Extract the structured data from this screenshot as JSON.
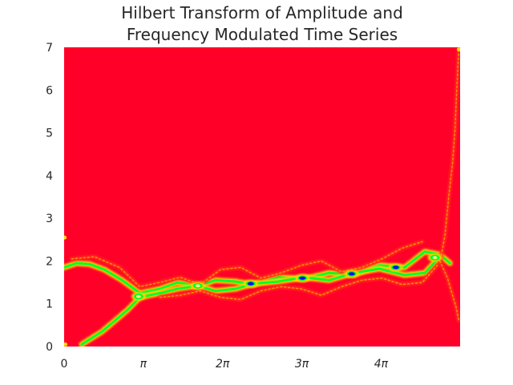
{
  "chart_data": {
    "type": "heatmap",
    "title_lines": [
      "Hilbert Transform of Amplitude and",
      "Frequency Modulated Time Series"
    ],
    "xlabel": "",
    "ylabel": "",
    "xlim": [
      0,
      15.7
    ],
    "ylim": [
      0,
      7
    ],
    "x_ticks": [
      {
        "value": 0,
        "label": "0"
      },
      {
        "value": 3.1416,
        "label": "π"
      },
      {
        "value": 6.2832,
        "label": "2π"
      },
      {
        "value": 9.4248,
        "label": "3π"
      },
      {
        "value": 12.5664,
        "label": "4π"
      }
    ],
    "y_ticks": [
      {
        "value": 0,
        "label": "0"
      },
      {
        "value": 1,
        "label": "1"
      },
      {
        "value": 2,
        "label": "2"
      },
      {
        "value": 3,
        "label": "3"
      },
      {
        "value": 4,
        "label": "4"
      },
      {
        "value": 5,
        "label": "5"
      },
      {
        "value": 6,
        "label": "6"
      },
      {
        "value": 7,
        "label": "7"
      }
    ],
    "grid": false,
    "colormap": {
      "background": "#ff0029",
      "low": "#ff2a1a",
      "mid": "#ffd700",
      "high": "#00ff2a",
      "peak": "#0000ff"
    },
    "ridges": [
      {
        "name": "ridge-upper-band",
        "strength": "high",
        "x": [
          0,
          0.5,
          1.0,
          1.6,
          2.3,
          3.0,
          3.8,
          4.5,
          5.3,
          6.0,
          6.8,
          7.5,
          8.5,
          9.5,
          10.5,
          11.5,
          12.5,
          13.5,
          14.3,
          14.9,
          15.3
        ],
        "y": [
          1.85,
          1.95,
          1.93,
          1.8,
          1.55,
          1.25,
          1.35,
          1.5,
          1.42,
          1.55,
          1.52,
          1.45,
          1.62,
          1.58,
          1.72,
          1.68,
          1.9,
          1.85,
          2.22,
          2.15,
          1.95
        ]
      },
      {
        "name": "ridge-lower-band",
        "strength": "high",
        "x": [
          0.7,
          1.5,
          2.5,
          3.0,
          3.8,
          4.5,
          5.3,
          6.0,
          6.8,
          7.5,
          8.5,
          9.5,
          10.5,
          11.5,
          12.5,
          13.5,
          14.3,
          14.9
        ],
        "y": [
          0.05,
          0.35,
          0.85,
          1.15,
          1.25,
          1.35,
          1.42,
          1.3,
          1.35,
          1.47,
          1.52,
          1.62,
          1.55,
          1.72,
          1.82,
          1.67,
          1.72,
          2.1
        ]
      },
      {
        "name": "ridge-faint-upper",
        "strength": "low",
        "x": [
          0.3,
          1.2,
          2.2,
          3.0,
          3.8,
          4.6,
          5.4,
          6.2,
          7.0,
          7.8,
          8.6,
          9.4,
          10.2,
          11.0,
          11.8,
          12.6,
          13.4,
          14.2
        ],
        "y": [
          2.05,
          2.1,
          1.85,
          1.4,
          1.5,
          1.62,
          1.45,
          1.8,
          1.85,
          1.6,
          1.72,
          1.9,
          2.0,
          1.75,
          1.85,
          2.05,
          2.3,
          2.45
        ]
      },
      {
        "name": "ridge-faint-lower",
        "strength": "low",
        "x": [
          3.8,
          4.6,
          5.4,
          6.2,
          7.0,
          7.8,
          8.6,
          9.4,
          10.2,
          11.0,
          11.8,
          12.6,
          13.4,
          14.2,
          14.8
        ],
        "y": [
          1.15,
          1.2,
          1.3,
          1.15,
          1.1,
          1.3,
          1.4,
          1.35,
          1.2,
          1.4,
          1.55,
          1.6,
          1.45,
          1.5,
          1.9
        ]
      },
      {
        "name": "ridge-end-spike",
        "strength": "low",
        "x": [
          14.9,
          15.1,
          15.25,
          15.4,
          15.5,
          15.55,
          15.6,
          15.65
        ],
        "y": [
          1.95,
          2.6,
          3.5,
          4.3,
          5.1,
          5.8,
          6.4,
          6.95
        ]
      },
      {
        "name": "ridge-end-drop",
        "strength": "low",
        "x": [
          14.9,
          15.2,
          15.4,
          15.55,
          15.65
        ],
        "y": [
          2.0,
          1.6,
          1.2,
          0.9,
          0.6
        ]
      }
    ],
    "peaks": [
      {
        "x": 2.95,
        "y": 1.17,
        "strength": "mid"
      },
      {
        "x": 5.3,
        "y": 1.42,
        "strength": "mid"
      },
      {
        "x": 7.4,
        "y": 1.47,
        "strength": "peak"
      },
      {
        "x": 9.45,
        "y": 1.6,
        "strength": "peak"
      },
      {
        "x": 11.4,
        "y": 1.7,
        "strength": "peak"
      },
      {
        "x": 13.15,
        "y": 1.85,
        "strength": "peak"
      },
      {
        "x": 14.7,
        "y": 2.08,
        "strength": "high"
      }
    ],
    "edge_marks": [
      {
        "x": 0.02,
        "y": 2.55
      },
      {
        "x": 0.05,
        "y": 0.05
      },
      {
        "x": 15.65,
        "y": 6.95
      }
    ]
  }
}
